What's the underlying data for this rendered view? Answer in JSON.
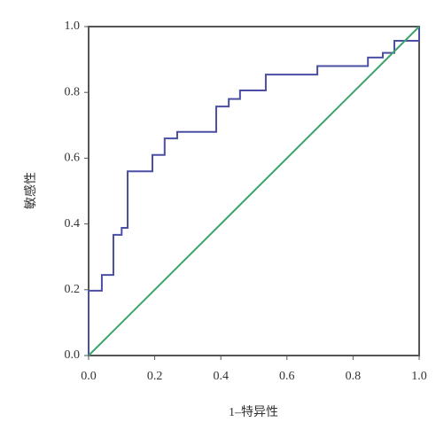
{
  "chart_data": {
    "type": "line",
    "xlabel": "1–特异性",
    "ylabel": "敏感性",
    "xlim": [
      0,
      1
    ],
    "ylim": [
      0,
      1
    ],
    "xticks": [
      {
        "value": 0,
        "label": "0.0"
      },
      0.2,
      0.4,
      0.6,
      0.8,
      {
        "value": 1,
        "label": "1.0"
      }
    ],
    "yticks": [
      {
        "value": 0,
        "label": "0.0"
      },
      0.2,
      0.4,
      0.6,
      0.8,
      {
        "value": 1,
        "label": "1.0"
      }
    ],
    "series": [
      {
        "color": "#4b4fa3",
        "x": [
          0,
          0,
          0.04,
          0.04,
          0.075,
          0.075,
          0.1,
          0.1,
          0.118,
          0.118,
          0.193,
          0.193,
          0.23,
          0.23,
          0.268,
          0.268,
          0.386,
          0.386,
          0.424,
          0.424,
          0.458,
          0.458,
          0.536,
          0.536,
          0.692,
          0.692,
          0.845,
          0.845,
          0.89,
          0.89,
          0.925,
          0.925,
          1,
          1
        ],
        "values": [
          0,
          0.197,
          0.197,
          0.245,
          0.245,
          0.367,
          0.367,
          0.388,
          0.388,
          0.56,
          0.56,
          0.61,
          0.61,
          0.66,
          0.66,
          0.68,
          0.68,
          0.757,
          0.757,
          0.78,
          0.78,
          0.806,
          0.806,
          0.854,
          0.854,
          0.88,
          0.88,
          0.906,
          0.906,
          0.92,
          0.92,
          0.957,
          0.957,
          1
        ]
      },
      {
        "color": "#3ba36b",
        "x": [
          0,
          1
        ],
        "values": [
          0,
          1
        ]
      }
    ]
  }
}
